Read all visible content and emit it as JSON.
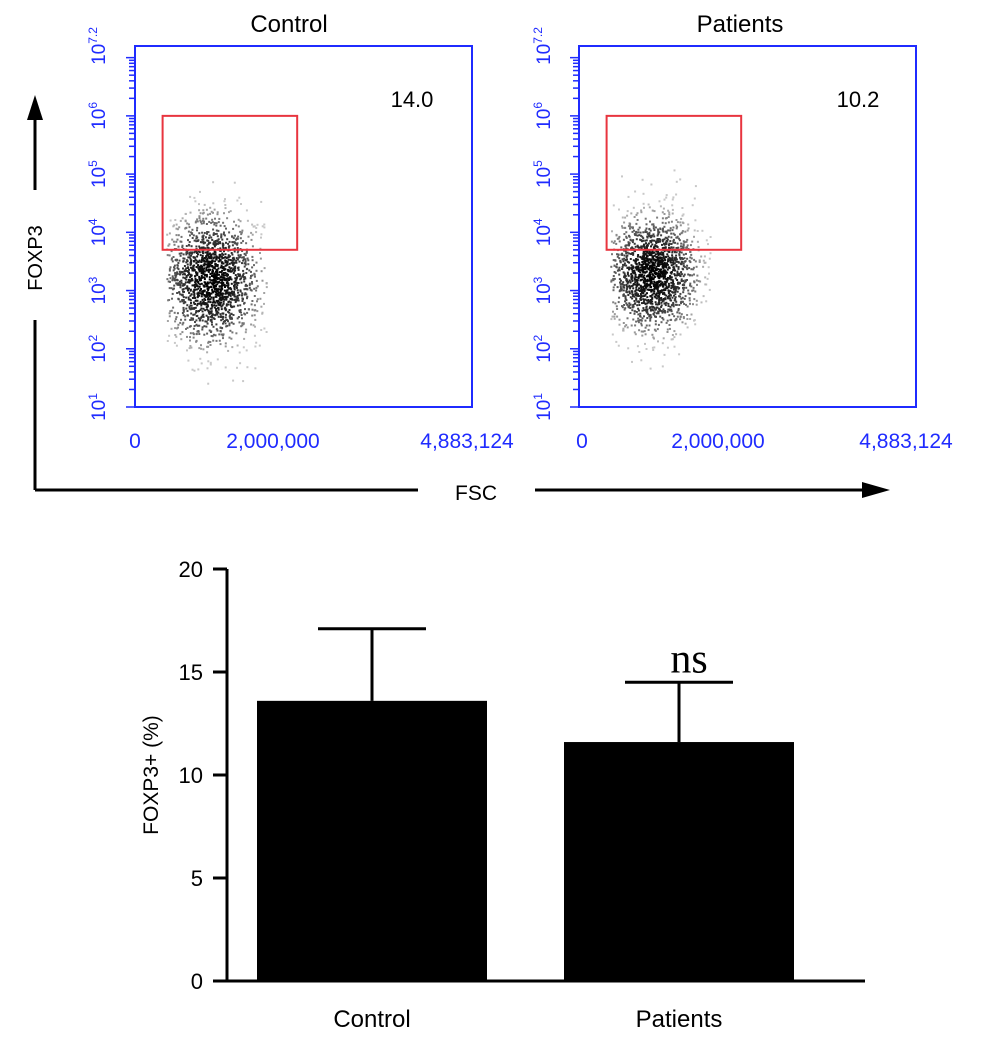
{
  "figure": {
    "axis_color": "#1f2bff",
    "gate_color": "#e8353f",
    "bar_color": "#000000"
  },
  "chart_data": [
    {
      "type": "scatter",
      "title": "Control",
      "gate_percent_label": "14.0",
      "gate_percent": 14.0,
      "xlim": [
        0,
        4883124
      ],
      "x_ticks": [
        0,
        2000000,
        4883124
      ],
      "x_tick_labels": [
        "0",
        "2,000,000",
        "4,883,124"
      ],
      "ylim_log10": [
        1,
        7.2
      ],
      "y_log_scale": true,
      "y_decade_ticks": [
        1,
        2,
        3,
        4,
        5,
        6,
        7.2
      ],
      "y_tick_bases": [
        "10",
        "10",
        "10",
        "10",
        "10",
        "10",
        "10"
      ],
      "y_tick_exponents": [
        "1",
        "2",
        "3",
        "4",
        "5",
        "6",
        "7.2"
      ],
      "gate": {
        "x0": 400000,
        "x1": 2350000,
        "log10_y0": 3.7,
        "log10_y1": 6.0
      },
      "population": {
        "x_center": 1100000,
        "x_spread": 350000,
        "log10_y_center": 3.2,
        "log10_y_spread": 0.55
      }
    },
    {
      "type": "scatter",
      "title": "Patients",
      "gate_percent_label": "10.2",
      "gate_percent": 10.2,
      "xlim": [
        0,
        4883124
      ],
      "x_ticks": [
        0,
        2000000,
        4883124
      ],
      "x_tick_labels": [
        "0",
        "2,000,000",
        "4,883,124"
      ],
      "ylim_log10": [
        1,
        7.2
      ],
      "y_log_scale": true,
      "y_decade_ticks": [
        1,
        2,
        3,
        4,
        5,
        6,
        7.2
      ],
      "y_tick_bases": [
        "10",
        "10",
        "10",
        "10",
        "10",
        "10",
        "10"
      ],
      "y_tick_exponents": [
        "1",
        "2",
        "3",
        "4",
        "5",
        "6",
        "7.2"
      ],
      "gate": {
        "x0": 400000,
        "x1": 2350000,
        "log10_y0": 3.7,
        "log10_y1": 6.0
      },
      "population": {
        "x_center": 1050000,
        "x_spread": 330000,
        "log10_y_center": 3.3,
        "log10_y_spread": 0.5
      }
    },
    {
      "type": "bar",
      "categories": [
        "Control",
        "Patients"
      ],
      "values": [
        13.6,
        11.6
      ],
      "error_upper": [
        17.1,
        14.5
      ],
      "ylabel": "FOXP3+ (%)",
      "ylim": [
        0,
        20
      ],
      "y_ticks": [
        0,
        5,
        10,
        15,
        20
      ],
      "y_tick_labels": [
        "0",
        "5",
        "10",
        "15",
        "20"
      ],
      "significance": {
        "category": "Patients",
        "label": "ns"
      }
    }
  ],
  "axes_arrows": {
    "y_label": "FOXP3",
    "x_label": "FSC"
  }
}
